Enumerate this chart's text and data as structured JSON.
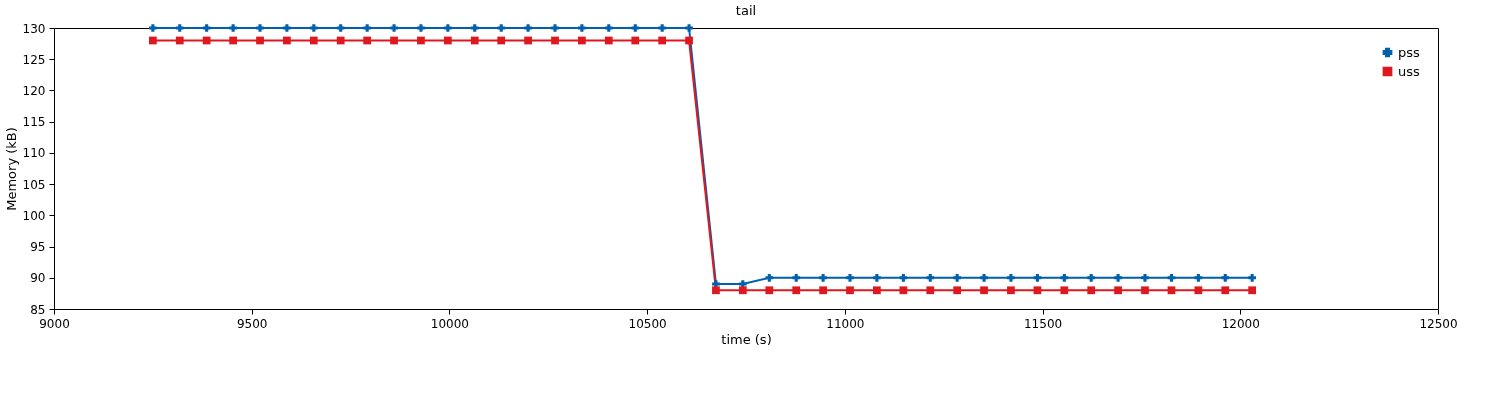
{
  "chart_data": {
    "type": "line",
    "title": "tail",
    "xlabel": "time (s)",
    "ylabel": "Memory (kB)",
    "x": [
      9250,
      9318,
      9386,
      9453,
      9521,
      9589,
      9657,
      9725,
      9792,
      9860,
      9928,
      9996,
      10064,
      10131,
      10199,
      10267,
      10335,
      10403,
      10470,
      10538,
      10606,
      10674,
      10742,
      10809,
      10877,
      10945,
      11013,
      11081,
      11148,
      11216,
      11284,
      11352,
      11420,
      11487,
      11555,
      11623,
      11691,
      11759,
      11826,
      11894,
      11962,
      12030
    ],
    "series": [
      {
        "name": "pss",
        "color": "#0060ad",
        "marker": "cross",
        "values": [
          130,
          130,
          130,
          130,
          130,
          130,
          130,
          130,
          130,
          130,
          130,
          130,
          130,
          130,
          130,
          130,
          130,
          130,
          130,
          130,
          130,
          89,
          89,
          90,
          90,
          90,
          90,
          90,
          90,
          90,
          90,
          90,
          90,
          90,
          90,
          90,
          90,
          90,
          90,
          90,
          90,
          90
        ]
      },
      {
        "name": "uss",
        "color": "#dd181f",
        "marker": "square",
        "values": [
          128,
          128,
          128,
          128,
          128,
          128,
          128,
          128,
          128,
          128,
          128,
          128,
          128,
          128,
          128,
          128,
          128,
          128,
          128,
          128,
          128,
          88,
          88,
          88,
          88,
          88,
          88,
          88,
          88,
          88,
          88,
          88,
          88,
          88,
          88,
          88,
          88,
          88,
          88,
          88,
          88,
          88
        ]
      }
    ],
    "xlim": [
      9000,
      12500
    ],
    "xticks": [
      9000,
      9500,
      10000,
      10500,
      11000,
      11500,
      12000,
      12500
    ],
    "ylim": [
      85,
      130
    ],
    "yticks": [
      85,
      90,
      95,
      100,
      105,
      110,
      115,
      120,
      125,
      130
    ],
    "grid": false,
    "legend": "top right",
    "line_style": "solid"
  }
}
